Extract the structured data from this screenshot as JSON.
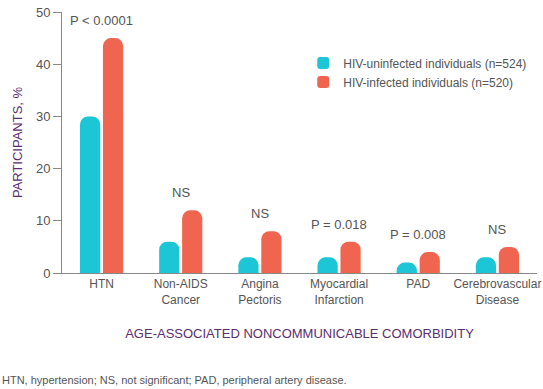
{
  "chart_data": {
    "type": "bar",
    "categories": [
      "HTN",
      "Non-AIDS Cancer",
      "Angina Pectoris",
      "Myocardial Infarction",
      "PAD",
      "Cerebrovascular Disease"
    ],
    "series": [
      {
        "name": "HIV-uninfected individuals (n=524)",
        "color": "#1cc6d6",
        "values": [
          30,
          6,
          3,
          3,
          2,
          3
        ]
      },
      {
        "name": "HIV-infected individuals (n=520)",
        "color": "#f0654f",
        "values": [
          45,
          12,
          8,
          6,
          4,
          5
        ]
      }
    ],
    "annotations": [
      "P < 0.0001",
      "NS",
      "NS",
      "P = 0.018",
      "P = 0.008",
      "NS"
    ],
    "x_label": "AGE-ASSOCIATED NONCOMMUNICABLE COMORBIDITY",
    "y_label": "PARTICIPANTS, %",
    "caption": "HTN, hypertension; NS, not significant; PAD, peripheral artery disease.",
    "ylim": [
      0,
      50
    ],
    "yticks": [
      0,
      10,
      20,
      30,
      40,
      50
    ],
    "grid": false,
    "legend": "upper right"
  }
}
